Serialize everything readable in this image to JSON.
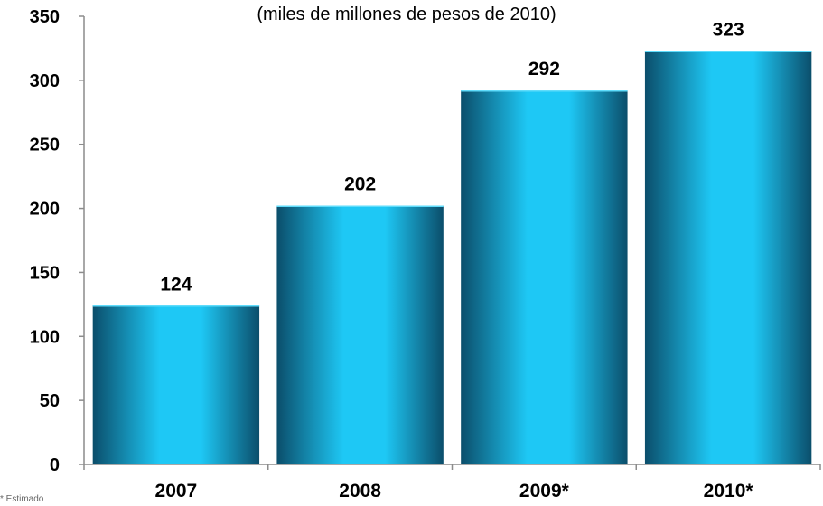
{
  "chart_data": {
    "type": "bar",
    "subtitle": "(miles de millones de pesos de 2010)",
    "categories": [
      "2007",
      "2008",
      "2009*",
      "2010*"
    ],
    "values": [
      124,
      202,
      292,
      323
    ],
    "data_labels": [
      "124",
      "202",
      "292",
      "323"
    ],
    "ylim": [
      0,
      350
    ],
    "yticks": [
      0,
      50,
      100,
      150,
      200,
      250,
      300,
      350
    ],
    "xlabel": "",
    "ylabel": "",
    "grid": false,
    "footnote": "* Estimado",
    "colors": {
      "bar_light": "#1ec8f5",
      "bar_dark": "#0b4e6b",
      "axis": "#8c8c8c"
    }
  }
}
